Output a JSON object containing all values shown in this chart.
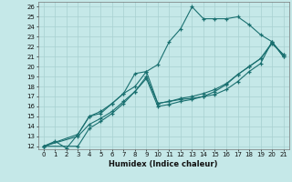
{
  "xlabel": "Humidex (Indice chaleur)",
  "xlim": [
    -0.5,
    21.5
  ],
  "ylim": [
    11.7,
    26.5
  ],
  "xticks": [
    0,
    1,
    2,
    3,
    4,
    5,
    6,
    7,
    8,
    9,
    10,
    11,
    12,
    13,
    14,
    15,
    16,
    17,
    18,
    19,
    20,
    21
  ],
  "yticks": [
    12,
    13,
    14,
    15,
    16,
    17,
    18,
    19,
    20,
    21,
    22,
    23,
    24,
    25,
    26
  ],
  "background_color": "#c5e8e8",
  "grid_color": "#a8d0d0",
  "line_color": "#1a7070",
  "line1_x": [
    0,
    1,
    2,
    3,
    4,
    5,
    6,
    7,
    8,
    9,
    10,
    11,
    12,
    13,
    14,
    15,
    16,
    17,
    18,
    19,
    20,
    21
  ],
  "line1_y": [
    12,
    12.5,
    11.8,
    13.2,
    15.0,
    15.5,
    16.3,
    17.3,
    18.0,
    19.5,
    20.2,
    22.5,
    23.8,
    26.0,
    24.8,
    24.8,
    24.8,
    25.0,
    24.2,
    23.2,
    22.5,
    21.0
  ],
  "line2_x": [
    0,
    3,
    4,
    5,
    6,
    7,
    8,
    9,
    10,
    11,
    12,
    13,
    14,
    15,
    16,
    17,
    18,
    19,
    20,
    21
  ],
  "line2_y": [
    12,
    13.2,
    15.0,
    15.3,
    16.3,
    17.3,
    19.3,
    19.5,
    16.3,
    16.5,
    16.7,
    16.8,
    17.0,
    17.2,
    17.7,
    18.5,
    19.5,
    20.3,
    22.5,
    21.0
  ],
  "line3_x": [
    0,
    3,
    4,
    5,
    6,
    7,
    8,
    9,
    10,
    11,
    12,
    13,
    14,
    15,
    16,
    17,
    18,
    19,
    20,
    21
  ],
  "line3_y": [
    12,
    13.0,
    14.2,
    14.8,
    15.5,
    16.5,
    17.5,
    18.8,
    16.0,
    16.2,
    16.5,
    16.7,
    17.0,
    17.5,
    18.2,
    19.2,
    20.0,
    20.8,
    22.3,
    21.2
  ],
  "line4_x": [
    0,
    3,
    4,
    5,
    6,
    7,
    8,
    9,
    10,
    11,
    12,
    13,
    14,
    15,
    16,
    17,
    18,
    19,
    20,
    21
  ],
  "line4_y": [
    12,
    12.0,
    13.8,
    14.5,
    15.3,
    16.3,
    17.5,
    19.0,
    16.3,
    16.5,
    16.8,
    17.0,
    17.3,
    17.7,
    18.3,
    19.2,
    20.0,
    20.8,
    22.4,
    21.2
  ]
}
